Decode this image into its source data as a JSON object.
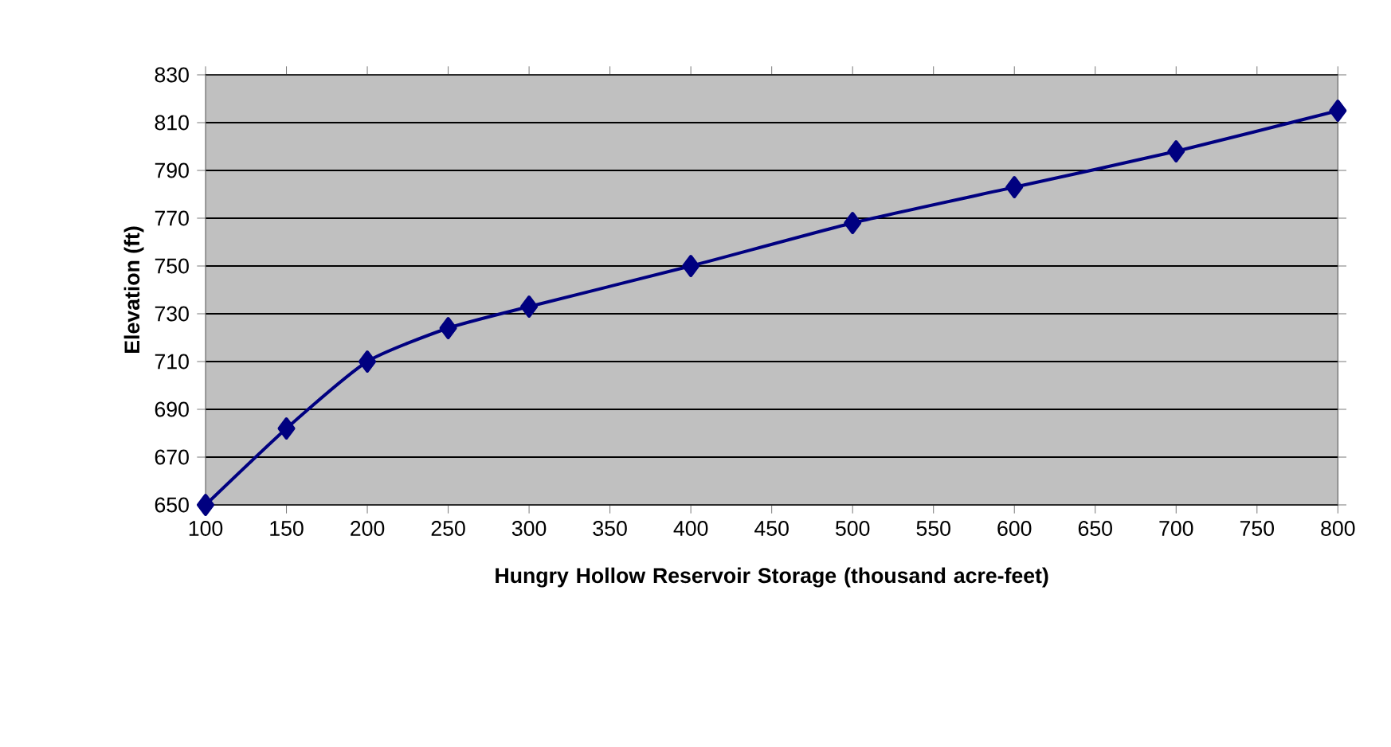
{
  "chart_data": {
    "type": "line",
    "xlabel": "Hungry Hollow Reservoir Storage (thousand acre-feet)",
    "ylabel": "Elevation (ft)",
    "x": [
      100,
      150,
      200,
      250,
      300,
      400,
      500,
      600,
      700,
      800
    ],
    "series": [
      {
        "color": "#000080",
        "values": [
          650,
          682,
          710,
          724,
          733,
          750,
          768,
          783,
          798,
          815
        ]
      }
    ],
    "xlim": [
      100,
      800
    ],
    "xticks": [
      100,
      150,
      200,
      250,
      300,
      350,
      400,
      450,
      500,
      550,
      600,
      650,
      700,
      750,
      800
    ],
    "ylim": [
      650,
      830
    ],
    "yticks": [
      650,
      670,
      690,
      710,
      730,
      750,
      770,
      790,
      810,
      830
    ],
    "grid": "y",
    "marker": "diamond",
    "line_style": "solid",
    "legend": false
  }
}
